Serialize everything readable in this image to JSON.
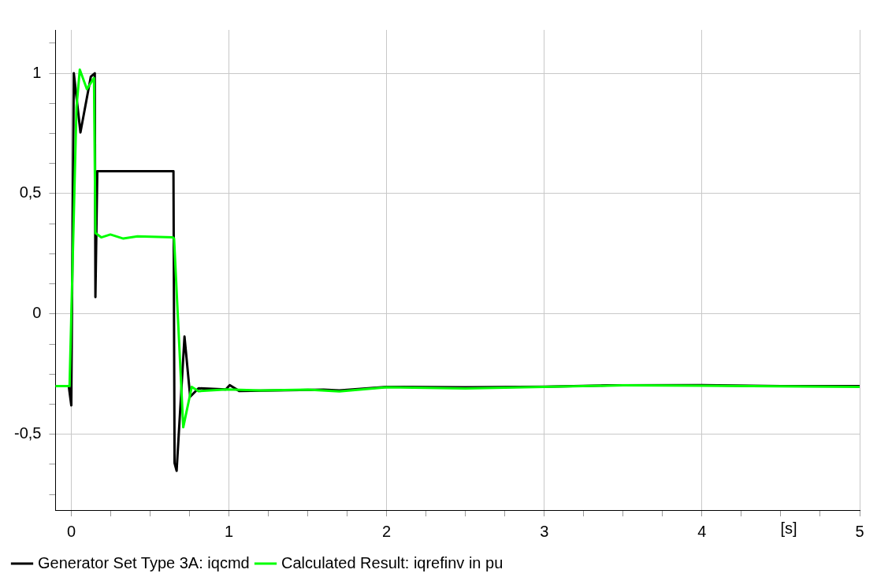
{
  "chart_data": {
    "type": "line",
    "xlabel": "[s]",
    "legend": "bottom",
    "grid": true,
    "marker": "none",
    "line_style": "solid",
    "xlim": [
      -0.1,
      5
    ],
    "ylim": [
      -0.815,
      1.18
    ],
    "xticks": [
      0,
      {
        "value": 0.25,
        "label": null
      },
      {
        "value": 0.5,
        "label": null
      },
      {
        "value": 0.75,
        "label": null
      },
      1,
      {
        "value": 1.25,
        "label": null
      },
      {
        "value": 1.5,
        "label": null
      },
      {
        "value": 1.75,
        "label": null
      },
      2,
      {
        "value": 2.25,
        "label": null
      },
      {
        "value": 2.5,
        "label": null
      },
      {
        "value": 2.75,
        "label": null
      },
      3,
      {
        "value": 3.25,
        "label": null
      },
      {
        "value": 3.5,
        "label": null
      },
      {
        "value": 3.75,
        "label": null
      },
      4,
      {
        "value": 4.25,
        "label": null
      },
      {
        "value": 4.5,
        "label": null
      },
      {
        "value": 4.75,
        "label": null
      },
      5
    ],
    "yticks": [
      {
        "value": -0.75,
        "label": null
      },
      {
        "value": -0.625,
        "label": null
      },
      {
        "value": -0.5,
        "label": "-0,5"
      },
      {
        "value": -0.375,
        "label": null
      },
      {
        "value": -0.25,
        "label": null
      },
      {
        "value": -0.125,
        "label": null
      },
      0,
      {
        "value": 0.125,
        "label": null
      },
      {
        "value": 0.25,
        "label": null
      },
      {
        "value": 0.375,
        "label": null
      },
      {
        "value": 0.5,
        "label": "0,5"
      },
      {
        "value": 0.625,
        "label": null
      },
      {
        "value": 0.75,
        "label": null
      },
      {
        "value": 0.875,
        "label": null
      },
      1,
      {
        "value": 1.125,
        "label": null
      }
    ],
    "series": [
      {
        "name": "Generator Set Type 3A: iqcmd",
        "color": "#000000",
        "x": [
          -0.1,
          -0.016,
          0.0,
          0.016,
          0.058,
          0.124,
          0.149,
          0.153,
          0.165,
          0.648,
          0.655,
          0.668,
          0.718,
          0.754,
          0.807,
          0.98,
          1.005,
          1.064,
          1.3,
          1.6,
          1.7,
          2.0,
          2.5,
          3.0,
          3.4,
          4.0,
          4.5,
          5.0
        ],
        "values": [
          -0.3,
          -0.3,
          -0.38,
          1.0,
          0.754,
          0.986,
          1.0,
          0.07,
          0.593,
          0.593,
          -0.62,
          -0.652,
          -0.094,
          -0.344,
          -0.309,
          -0.314,
          -0.296,
          -0.32,
          -0.318,
          -0.315,
          -0.318,
          -0.303,
          -0.305,
          -0.302,
          -0.297,
          -0.296,
          -0.3,
          -0.3
        ]
      },
      {
        "name": "Calculated Result: iqrefinv in pu",
        "color": "#00ff00",
        "x": [
          -0.1,
          -0.011,
          0.033,
          0.054,
          0.099,
          0.144,
          0.153,
          0.19,
          0.248,
          0.33,
          0.42,
          0.644,
          0.652,
          0.71,
          0.764,
          0.807,
          0.985,
          1.2,
          1.5,
          1.7,
          2.0,
          2.5,
          3.0,
          3.5,
          4.0,
          5.0
        ],
        "values": [
          -0.3,
          -0.3,
          0.858,
          1.015,
          0.934,
          0.98,
          0.336,
          0.318,
          0.33,
          0.313,
          0.322,
          0.318,
          0.313,
          -0.471,
          -0.303,
          -0.321,
          -0.314,
          -0.318,
          -0.315,
          -0.322,
          -0.305,
          -0.31,
          -0.303,
          -0.297,
          -0.298,
          -0.303
        ]
      }
    ]
  }
}
